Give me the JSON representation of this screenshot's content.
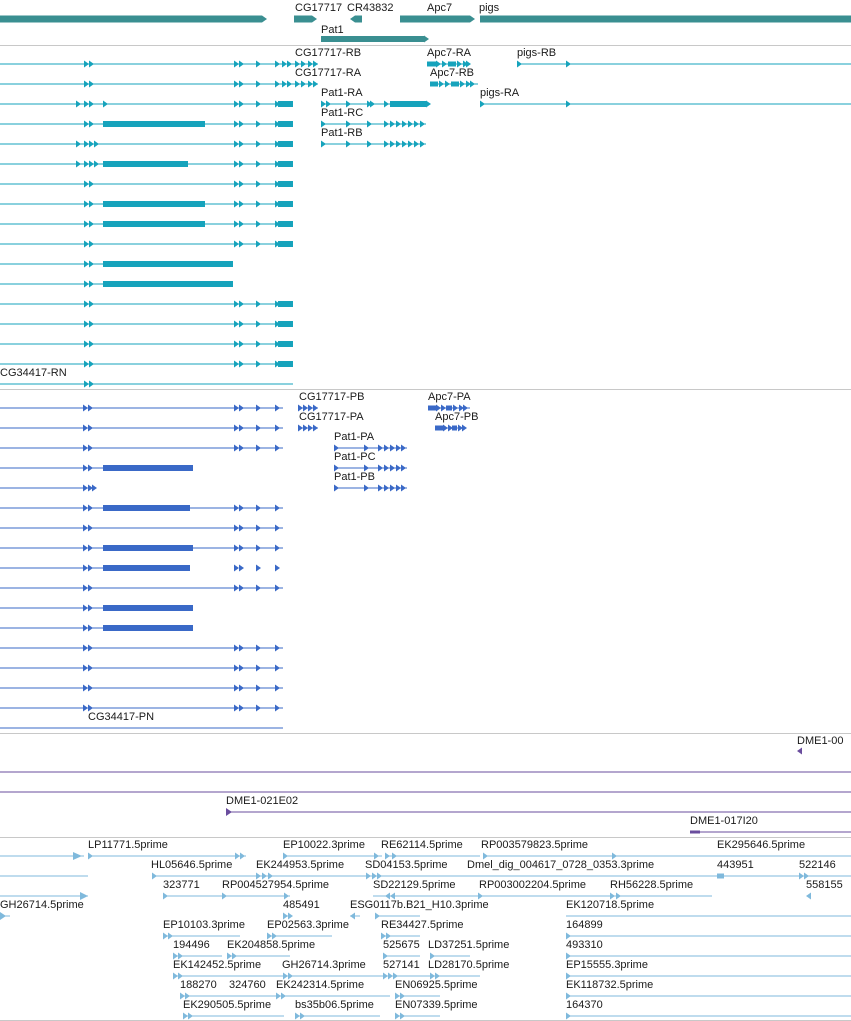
{
  "colors": {
    "gene": "#3a8f91",
    "transcript_top": "#16a3bc",
    "transcript_bottom": "#3a69c7",
    "clone": "#6a4d9e",
    "est": "#7fb9dc",
    "divider": "#c8c8c8",
    "label": "#1a1a1a"
  },
  "genes_track": {
    "labels": {
      "cg17717": "CG17717",
      "cr43832": "CR43832",
      "apc7": "Apc7",
      "pigs": "pigs",
      "pat1": "Pat1"
    }
  },
  "transcripts_top": {
    "labels": {
      "cg17717_rb": "CG17717-RB",
      "apc7_ra": "Apc7-RA",
      "pigs_rb": "pigs-RB",
      "cg17717_ra": "CG17717-RA",
      "apc7_rb": "Apc7-RB",
      "pat1_ra": "Pat1-RA",
      "pigs_ra": "pigs-RA",
      "pat1_rc": "Pat1-RC",
      "pat1_rb": "Pat1-RB",
      "cg34417_rn": "CG34417-RN"
    }
  },
  "transcripts_bottom": {
    "labels": {
      "cg17717_pb": "CG17717-PB",
      "apc7_pa": "Apc7-PA",
      "cg17717_pa": "CG17717-PA",
      "apc7_pb": "Apc7-PB",
      "pat1_pa": "Pat1-PA",
      "pat1_pc": "Pat1-PC",
      "pat1_pb": "Pat1-PB",
      "cg34417_pn": "CG34417-PN"
    }
  },
  "clones_track": {
    "labels": {
      "dme1_00": "DME1-00",
      "dme1_021e02": "DME1-021E02",
      "dme1_017i20": "DME1-017I20"
    }
  },
  "est_track": {
    "labels": [
      "LP11771.5prime",
      "EP10022.3prime",
      "RE62114.5prime",
      "RP003579823.5prime",
      "EK295646.5prime",
      "HL05646.5prime",
      "EK244953.5prime",
      "SD04153.5prime",
      "Dmel_dig_004617_0728_0353.3prime",
      "443951",
      "522146",
      "323771",
      "RP004527954.5prime",
      "SD22129.5prime",
      "RP003002204.5prime",
      "RH56228.5prime",
      "558155",
      "GH26714.5prime",
      "485491",
      "ESG0117b.B21_H10.3prime",
      "EK120718.5prime",
      "EP10103.3prime",
      "EP02563.3prime",
      "RE34427.5prime",
      "164899",
      "194496",
      "EK204858.5prime",
      "525675",
      "LD37251.5prime",
      "493310",
      "EK142452.5prime",
      "GH26714.3prime",
      "527141",
      "LD28170.5prime",
      "EP15555.3prime",
      "188270",
      "324760",
      "EK242314.5prime",
      "EN06925.5prime",
      "EK118732.5prime",
      "EK290505.5prime",
      "bs35b06.5prime",
      "EN07339.5prime",
      "164370"
    ]
  }
}
